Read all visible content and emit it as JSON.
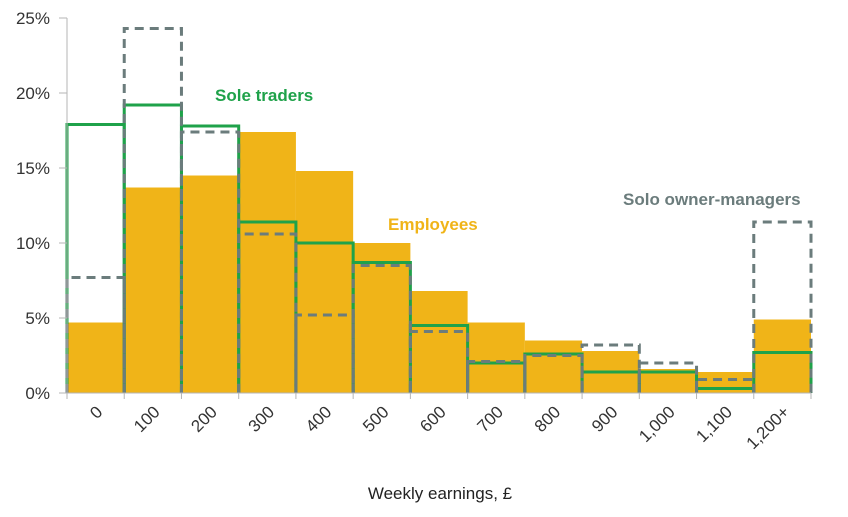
{
  "chart_data": {
    "type": "bar",
    "title": "",
    "xlabel": "Weekly earnings, £",
    "ylabel": "",
    "ylim": [
      0,
      25
    ],
    "yticks": [
      0,
      5,
      10,
      15,
      20,
      25
    ],
    "ytick_labels": [
      "0%",
      "5%",
      "10%",
      "15%",
      "20%",
      "25%"
    ],
    "categories": [
      "0",
      "100",
      "200",
      "300",
      "400",
      "500",
      "600",
      "700",
      "800",
      "900",
      "1,000",
      "1,100",
      "1,200+"
    ],
    "series": [
      {
        "name": "Employees",
        "style": "filled-bar",
        "color": "#F0B418",
        "values": [
          4.7,
          13.7,
          14.5,
          17.4,
          14.8,
          10.0,
          6.8,
          4.7,
          3.5,
          2.8,
          1.6,
          1.4,
          4.9
        ]
      },
      {
        "name": "Sole traders",
        "style": "solid-step",
        "color": "#1FA24A",
        "values": [
          17.9,
          19.2,
          17.8,
          11.4,
          10.0,
          8.7,
          4.5,
          2.0,
          2.6,
          1.4,
          1.4,
          0.3,
          2.7
        ]
      },
      {
        "name": "Solo owner-managers",
        "style": "dashed-step",
        "color": "#6B7C7C",
        "values": [
          7.7,
          24.3,
          17.4,
          10.6,
          5.2,
          8.5,
          4.1,
          2.1,
          2.5,
          3.2,
          2.0,
          0.9,
          11.4
        ]
      }
    ],
    "annotations": {
      "sole_traders": "Sole traders",
      "employees": "Employees",
      "solo_owner_managers": "Solo owner-managers"
    },
    "grid": false
  }
}
